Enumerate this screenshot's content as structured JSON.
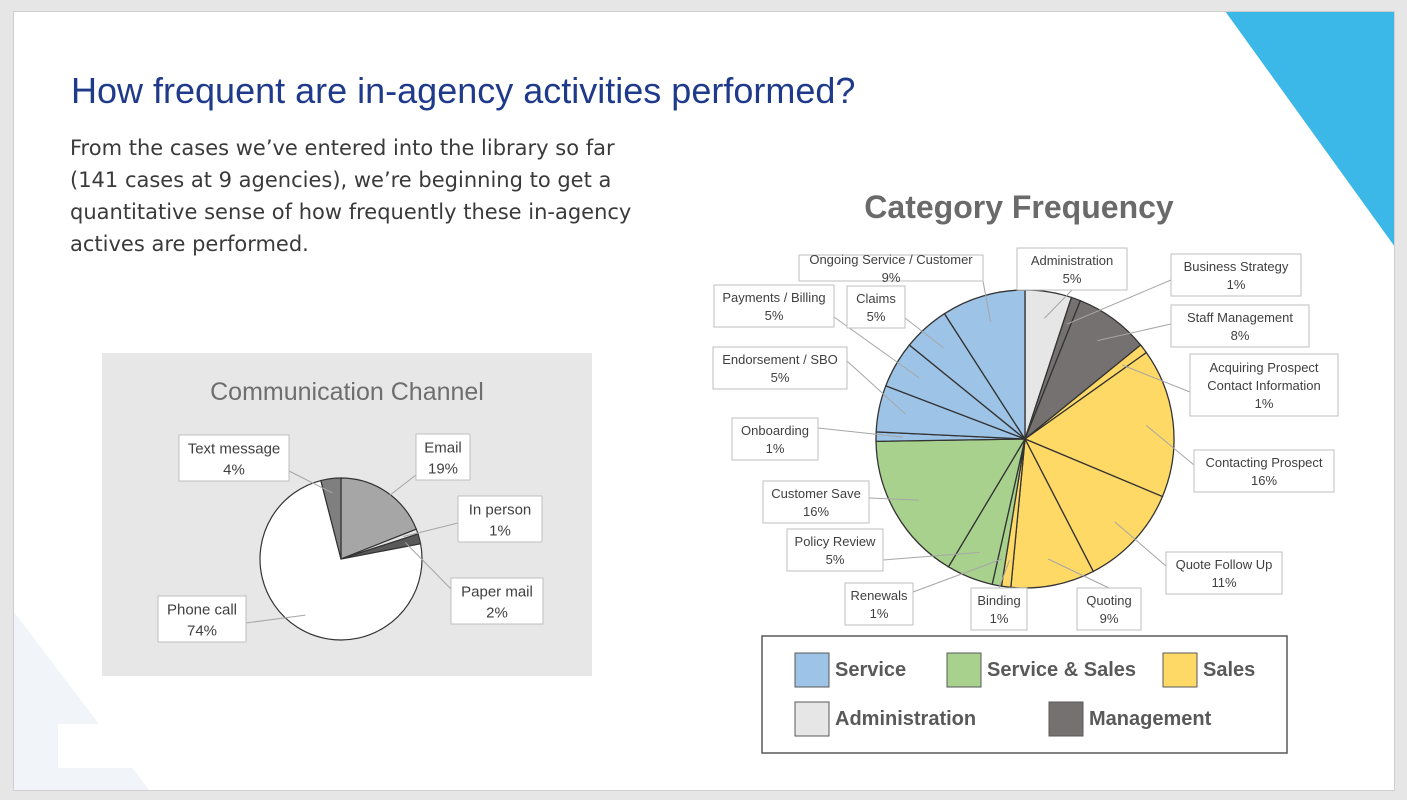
{
  "slide": {
    "title": "How frequent are in-agency activities performed?",
    "intro": "From the cases we’ve entered into the library so far (141 cases at 9 agencies), we’re beginning to get a quantitative sense of how frequently these in-agency actives are performed."
  },
  "colors": {
    "title_blue": "#1f3a8a",
    "accent_cyan": "#3bb8e8",
    "service": "#9dc3e6",
    "service_sales": "#a9d18e",
    "sales": "#ffd966",
    "administration": "#e7e6e6",
    "management": "#767171"
  },
  "chart_data": [
    {
      "type": "pie",
      "title": "Communication Channel",
      "slices": [
        {
          "label": "Email",
          "value": 19,
          "display": "19%",
          "color": "#a6a6a6"
        },
        {
          "label": "In person",
          "value": 1,
          "display": "1%",
          "color": "#e7e6e6"
        },
        {
          "label": "Paper mail",
          "value": 2,
          "display": "2%",
          "color": "#595959"
        },
        {
          "label": "Phone call",
          "value": 74,
          "display": "74%",
          "color": "#ffffff"
        },
        {
          "label": "Text message",
          "value": 4,
          "display": "4%",
          "color": "#7f7f7f"
        }
      ]
    },
    {
      "type": "pie",
      "title": "Category Frequency",
      "legend": [
        {
          "name": "Service",
          "color": "#9dc3e6"
        },
        {
          "name": "Service & Sales",
          "color": "#a9d18e"
        },
        {
          "name": "Sales",
          "color": "#ffd966"
        },
        {
          "name": "Administration",
          "color": "#e7e6e6"
        },
        {
          "name": "Management",
          "color": "#767171"
        }
      ],
      "slices": [
        {
          "label": "Administration",
          "value": 5,
          "display": "5%",
          "category": "Administration"
        },
        {
          "label": "Business Strategy",
          "value": 1,
          "display": "1%",
          "category": "Management"
        },
        {
          "label": "Staff Management",
          "value": 8,
          "display": "8%",
          "category": "Management"
        },
        {
          "label": "Acquiring Prospect Contact Information",
          "value": 1,
          "display": "1%",
          "category": "Sales"
        },
        {
          "label": "Contacting Prospect",
          "value": 16,
          "display": "16%",
          "category": "Sales"
        },
        {
          "label": "Quote Follow Up",
          "value": 11,
          "display": "11%",
          "category": "Sales"
        },
        {
          "label": "Quoting",
          "value": 9,
          "display": "9%",
          "category": "Sales"
        },
        {
          "label": "Binding",
          "value": 1,
          "display": "1%",
          "category": "Sales"
        },
        {
          "label": "Renewals",
          "value": 1,
          "display": "1%",
          "category": "Service & Sales"
        },
        {
          "label": "Policy Review",
          "value": 5,
          "display": "5%",
          "category": "Service & Sales"
        },
        {
          "label": "Customer Save",
          "value": 16,
          "display": "16%",
          "category": "Service & Sales"
        },
        {
          "label": "Onboarding",
          "value": 1,
          "display": "1%",
          "category": "Service"
        },
        {
          "label": "Endorsement / SBO",
          "value": 5,
          "display": "5%",
          "category": "Service"
        },
        {
          "label": "Payments / Billing",
          "value": 5,
          "display": "5%",
          "category": "Service"
        },
        {
          "label": "Claims",
          "value": 5,
          "display": "5%",
          "category": "Service"
        },
        {
          "label": "Ongoing Service / Customer",
          "value": 9,
          "display": "9%",
          "category": "Service"
        }
      ]
    }
  ]
}
